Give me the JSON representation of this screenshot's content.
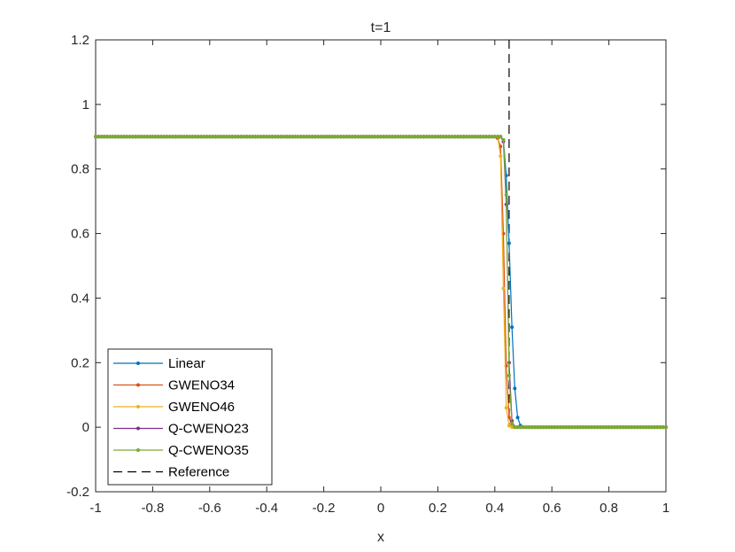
{
  "chart_data": {
    "type": "line",
    "title": "t=1",
    "xlabel": "x",
    "ylabel": "",
    "xlim": [
      -1,
      1
    ],
    "ylim": [
      -0.2,
      1.2
    ],
    "xticks": [
      -1,
      -0.8,
      -0.6,
      -0.4,
      -0.2,
      0,
      0.2,
      0.4,
      0.6,
      0.8,
      1
    ],
    "xtick_labels": [
      "-1",
      "-0.8",
      "-0.6",
      "-0.4",
      "-0.2",
      "0",
      "0.2",
      "0.4",
      "0.6",
      "0.8",
      "1"
    ],
    "yticks": [
      -0.2,
      0,
      0.2,
      0.4,
      0.6,
      0.8,
      1,
      1.2
    ],
    "ytick_labels": [
      "-0.2",
      "0",
      "0.2",
      "0.4",
      "0.6",
      "0.8",
      "1",
      "1.2"
    ],
    "grid": false,
    "legend_position": "bottom-left",
    "sampling": {
      "x_start": -1,
      "x_end": 1,
      "points": 201
    },
    "series": [
      {
        "name": "Linear",
        "color": "#0072BD",
        "style": "solid-dot",
        "left_value": 0.9,
        "right_value": 0,
        "transition": [
          [
            0.42,
            0.9
          ],
          [
            0.43,
            0.89
          ],
          [
            0.44,
            0.78
          ],
          [
            0.45,
            0.57
          ],
          [
            0.46,
            0.31
          ],
          [
            0.47,
            0.12
          ],
          [
            0.48,
            0.03
          ],
          [
            0.49,
            0.005
          ],
          [
            0.5,
            0
          ]
        ]
      },
      {
        "name": "GWENO34",
        "color": "#D95319",
        "style": "solid-dot",
        "left_value": 0.9,
        "right_value": 0,
        "transition": [
          [
            0.41,
            0.895
          ],
          [
            0.42,
            0.87
          ],
          [
            0.43,
            0.6
          ],
          [
            0.44,
            0.19
          ],
          [
            0.45,
            0.03
          ],
          [
            0.46,
            0.005
          ],
          [
            0.47,
            0
          ]
        ]
      },
      {
        "name": "GWENO46",
        "color": "#EDB120",
        "style": "solid-dot",
        "left_value": 0.9,
        "right_value": 0,
        "transition": [
          [
            0.41,
            0.9
          ],
          [
            0.42,
            0.84
          ],
          [
            0.43,
            0.43
          ],
          [
            0.44,
            0.06
          ],
          [
            0.45,
            0.005
          ],
          [
            0.46,
            0
          ]
        ]
      },
      {
        "name": "Q-CWENO23",
        "color": "#7E2F8E",
        "style": "solid-dot",
        "left_value": 0.9,
        "right_value": 0,
        "transition": [
          [
            0.42,
            0.9
          ],
          [
            0.43,
            0.885
          ],
          [
            0.44,
            0.69
          ],
          [
            0.45,
            0.2
          ],
          [
            0.46,
            0.02
          ],
          [
            0.47,
            0
          ]
        ]
      },
      {
        "name": "Q-CWENO35",
        "color": "#77AC30",
        "style": "solid-dot",
        "left_value": 0.9,
        "right_value": 0,
        "transition": [
          [
            0.42,
            0.9
          ],
          [
            0.43,
            0.89
          ],
          [
            0.44,
            0.72
          ],
          [
            0.45,
            0.16
          ],
          [
            0.46,
            0.01
          ],
          [
            0.47,
            0
          ]
        ]
      },
      {
        "name": "Reference",
        "color": "#000000",
        "style": "dashed",
        "points": [
          [
            0.45,
            1.2
          ],
          [
            0.45,
            0
          ]
        ]
      }
    ]
  }
}
